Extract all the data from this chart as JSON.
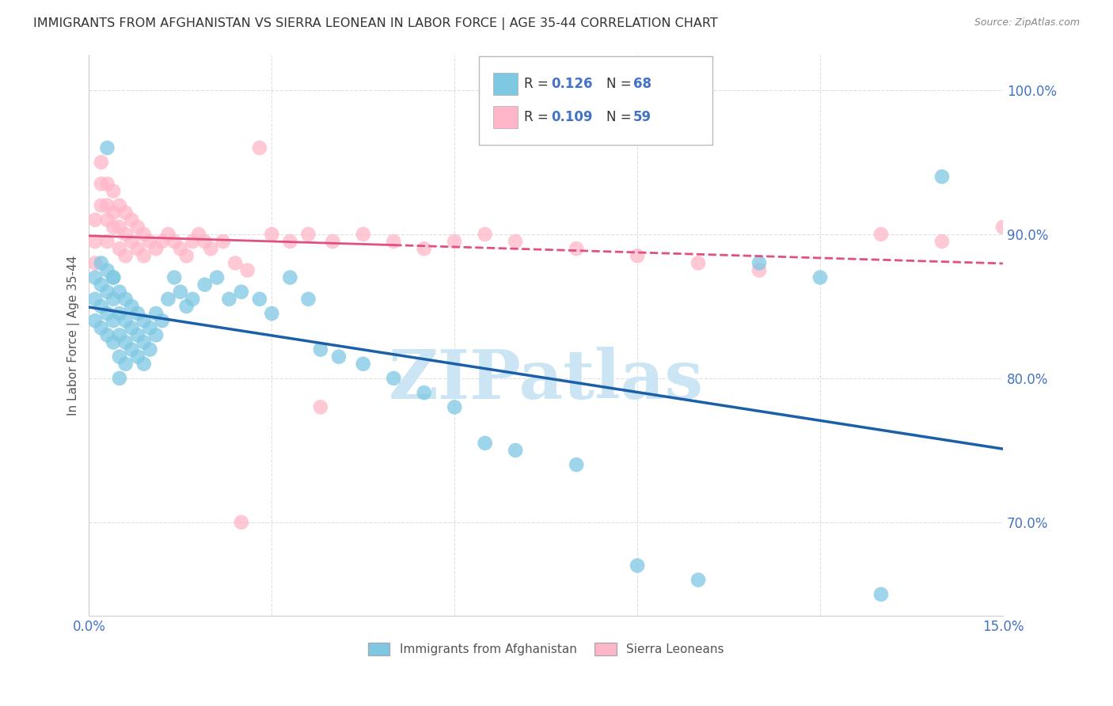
{
  "title": "IMMIGRANTS FROM AFGHANISTAN VS SIERRA LEONEAN IN LABOR FORCE | AGE 35-44 CORRELATION CHART",
  "source": "Source: ZipAtlas.com",
  "ylabel": "In Labor Force | Age 35-44",
  "xlim": [
    0.0,
    0.15
  ],
  "ylim": [
    0.635,
    1.025
  ],
  "yticks": [
    0.7,
    0.8,
    0.9,
    1.0
  ],
  "yticklabels": [
    "70.0%",
    "80.0%",
    "90.0%",
    "100.0%"
  ],
  "xtick_positions": [
    0.0,
    0.03,
    0.06,
    0.09,
    0.12,
    0.15
  ],
  "xticklabels": [
    "0.0%",
    "",
    "",
    "",
    "",
    "15.0%"
  ],
  "afghanistan_color": "#7ec8e3",
  "sierra_leone_color": "#ffb6c8",
  "afghanistan_line_color": "#1a5fa8",
  "sierra_leone_line_color": "#e05080",
  "afghanistan_R": "0.126",
  "afghanistan_N": "68",
  "sierra_leone_R": "0.109",
  "sierra_leone_N": "59",
  "af_x": [
    0.001,
    0.001,
    0.001,
    0.002,
    0.002,
    0.002,
    0.002,
    0.003,
    0.003,
    0.003,
    0.003,
    0.003,
    0.004,
    0.004,
    0.004,
    0.004,
    0.004,
    0.005,
    0.005,
    0.005,
    0.005,
    0.005,
    0.006,
    0.006,
    0.006,
    0.006,
    0.007,
    0.007,
    0.007,
    0.008,
    0.008,
    0.008,
    0.009,
    0.009,
    0.009,
    0.01,
    0.01,
    0.011,
    0.011,
    0.012,
    0.013,
    0.014,
    0.015,
    0.016,
    0.017,
    0.019,
    0.021,
    0.023,
    0.025,
    0.028,
    0.03,
    0.033,
    0.036,
    0.038,
    0.041,
    0.045,
    0.05,
    0.055,
    0.06,
    0.065,
    0.07,
    0.08,
    0.09,
    0.1,
    0.11,
    0.12,
    0.13,
    0.14
  ],
  "af_y": [
    0.87,
    0.855,
    0.84,
    0.88,
    0.865,
    0.85,
    0.835,
    0.875,
    0.86,
    0.845,
    0.83,
    0.96,
    0.87,
    0.855,
    0.84,
    0.825,
    0.87,
    0.86,
    0.845,
    0.83,
    0.815,
    0.8,
    0.855,
    0.84,
    0.825,
    0.81,
    0.85,
    0.835,
    0.82,
    0.845,
    0.83,
    0.815,
    0.84,
    0.825,
    0.81,
    0.835,
    0.82,
    0.845,
    0.83,
    0.84,
    0.855,
    0.87,
    0.86,
    0.85,
    0.855,
    0.865,
    0.87,
    0.855,
    0.86,
    0.855,
    0.845,
    0.87,
    0.855,
    0.82,
    0.815,
    0.81,
    0.8,
    0.79,
    0.78,
    0.755,
    0.75,
    0.74,
    0.67,
    0.66,
    0.88,
    0.87,
    0.65,
    0.94
  ],
  "sl_x": [
    0.001,
    0.001,
    0.001,
    0.002,
    0.002,
    0.002,
    0.003,
    0.003,
    0.003,
    0.003,
    0.004,
    0.004,
    0.004,
    0.005,
    0.005,
    0.005,
    0.006,
    0.006,
    0.006,
    0.007,
    0.007,
    0.008,
    0.008,
    0.009,
    0.009,
    0.01,
    0.011,
    0.012,
    0.013,
    0.014,
    0.015,
    0.016,
    0.017,
    0.018,
    0.019,
    0.02,
    0.022,
    0.024,
    0.026,
    0.028,
    0.03,
    0.033,
    0.036,
    0.04,
    0.045,
    0.05,
    0.055,
    0.06,
    0.065,
    0.07,
    0.08,
    0.09,
    0.1,
    0.11,
    0.13,
    0.14,
    0.15,
    0.025,
    0.038
  ],
  "sl_y": [
    0.91,
    0.895,
    0.88,
    0.95,
    0.935,
    0.92,
    0.91,
    0.895,
    0.935,
    0.92,
    0.905,
    0.93,
    0.915,
    0.92,
    0.905,
    0.89,
    0.915,
    0.9,
    0.885,
    0.91,
    0.895,
    0.905,
    0.89,
    0.9,
    0.885,
    0.895,
    0.89,
    0.895,
    0.9,
    0.895,
    0.89,
    0.885,
    0.895,
    0.9,
    0.895,
    0.89,
    0.895,
    0.88,
    0.875,
    0.96,
    0.9,
    0.895,
    0.9,
    0.895,
    0.9,
    0.895,
    0.89,
    0.895,
    0.9,
    0.895,
    0.89,
    0.885,
    0.88,
    0.875,
    0.9,
    0.895,
    0.905,
    0.7,
    0.78
  ],
  "watermark_text": "ZIPatlas",
  "watermark_color": "#cce5f5",
  "background_color": "#ffffff",
  "grid_color": "#d8d8d8",
  "title_color": "#333333",
  "ylabel_color": "#555555",
  "tick_color": "#4472c4",
  "source_color": "#888888"
}
